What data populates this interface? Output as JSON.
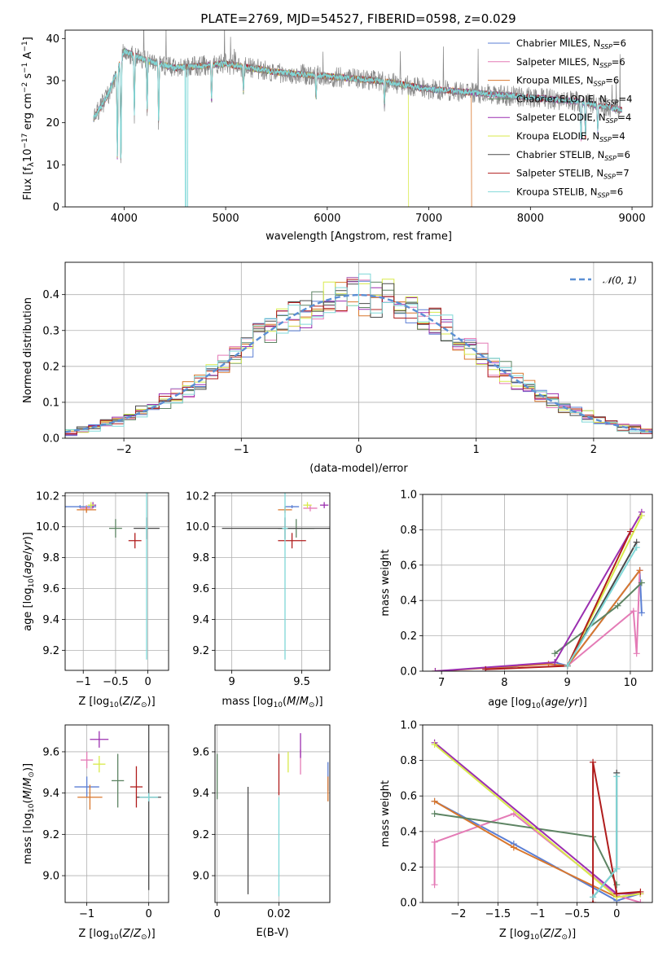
{
  "title": "PLATE=2769, MJD=54527, FIBERID=0598, z=0.029",
  "models": [
    {
      "label": "Chabrier MILES, N",
      "sub": "SSP",
      "suffix": "=6",
      "color": "#5b7fd4"
    },
    {
      "label": "Salpeter MILES, N",
      "sub": "SSP",
      "suffix": "=6",
      "color": "#e47bb6"
    },
    {
      "label": "Kroupa MILES, N",
      "sub": "SSP",
      "suffix": "=6",
      "color": "#d9772d"
    },
    {
      "label": "Chabrier ELODIE, N",
      "sub": "SSP",
      "suffix": "=4",
      "color": "#5d8463"
    },
    {
      "label": "Salpeter ELODIE, N",
      "sub": "SSP",
      "suffix": "=4",
      "color": "#9b2fb0"
    },
    {
      "label": "Kroupa ELODIE, N",
      "sub": "SSP",
      "suffix": "=4",
      "color": "#d8ea4a"
    },
    {
      "label": "Chabrier STELIB, N",
      "sub": "SSP",
      "suffix": "=6",
      "color": "#4a4a4a"
    },
    {
      "label": "Salpeter STELIB, N",
      "sub": "SSP",
      "suffix": "=7",
      "color": "#b01d1d"
    },
    {
      "label": "Kroupa STELIB, N",
      "sub": "SSP",
      "suffix": "=6",
      "color": "#7fd8d8"
    }
  ],
  "chart_data": [
    {
      "id": "spectrum",
      "type": "line",
      "xlabel": "wavelength [Angstrom, rest frame]",
      "ylabel": "Flux [f_λ 10^-17 erg cm^-2 s^-1 A^-1]",
      "xlim": [
        3420,
        9200
      ],
      "ylim": [
        0,
        42
      ],
      "xticks": [
        4000,
        5000,
        6000,
        7000,
        8000,
        9000
      ],
      "yticks": [
        0,
        10,
        20,
        30,
        40
      ],
      "data_range": [
        3700,
        8900
      ],
      "continuum": [
        [
          3700,
          21
        ],
        [
          3850,
          27
        ],
        [
          4000,
          37
        ],
        [
          4200,
          35
        ],
        [
          4500,
          33
        ],
        [
          5000,
          34
        ],
        [
          5500,
          32
        ],
        [
          6000,
          31
        ],
        [
          6500,
          30
        ],
        [
          7000,
          28
        ],
        [
          7500,
          27
        ],
        [
          8000,
          26
        ],
        [
          8500,
          25
        ],
        [
          8900,
          23
        ]
      ],
      "absorption_lines": [
        [
          3934,
          12
        ],
        [
          3969,
          10
        ],
        [
          4101,
          22
        ],
        [
          4227,
          23
        ],
        [
          4340,
          20
        ],
        [
          4861,
          25
        ],
        [
          5175,
          27
        ],
        [
          5890,
          26
        ],
        [
          6563,
          24
        ],
        [
          8498,
          16
        ],
        [
          8542,
          16
        ],
        [
          8662,
          18
        ]
      ],
      "model_cutoffs": [
        {
          "series": "Kroupa MILES",
          "wavelength": 7420
        },
        {
          "series": "Kroupa ELODIE",
          "wavelength": 6800
        },
        {
          "series": "Kroupa STELIB",
          "wavelength": 4610
        },
        {
          "series": "Chabrier STELIB",
          "wavelength": 3900
        }
      ],
      "grid": false,
      "legend": "top-right"
    },
    {
      "id": "residuals",
      "type": "step",
      "xlabel": "(data-model)/error",
      "ylabel": "Normed distribution",
      "xlim": [
        -2.5,
        2.5
      ],
      "ylim": [
        0,
        0.49
      ],
      "xticks": [
        -2,
        -1,
        0,
        1,
        2
      ],
      "yticks": [
        0.0,
        0.1,
        0.2,
        0.3,
        0.4
      ],
      "reference_label": "𝒩(0, 1)",
      "reference_curve": {
        "mean": 0,
        "sigma": 1
      },
      "bin_width": 0.1,
      "grid": true,
      "legend": "top-right"
    },
    {
      "id": "age-vs-Z",
      "type": "errorbar",
      "xlabel": "Z [log10(Z/Z⊙)]",
      "ylabel": "age [log10(age/yr)]",
      "xlim": [
        -1.28,
        0.32
      ],
      "ylim": [
        9.07,
        10.22
      ],
      "xticks": [
        -1,
        -0.5,
        0
      ],
      "yticks": [
        9.2,
        9.4,
        9.6,
        9.8,
        10.0,
        10.2
      ],
      "points": [
        {
          "series": "Chabrier MILES",
          "x": -1.05,
          "y": 10.13,
          "xerr": 0.25,
          "yerr": 0.01
        },
        {
          "series": "Salpeter MILES",
          "x": -0.95,
          "y": 10.12,
          "xerr": 0.1,
          "yerr": 0.02
        },
        {
          "series": "Kroupa MILES",
          "x": -0.95,
          "y": 10.11,
          "xerr": 0.15,
          "yerr": 0.02
        },
        {
          "series": "Chabrier ELODIE",
          "x": -0.5,
          "y": 9.99,
          "xerr": 0.1,
          "yerr": 0.06
        },
        {
          "series": "Salpeter ELODIE",
          "x": -0.85,
          "y": 10.14,
          "xerr": 0.05,
          "yerr": 0.02
        },
        {
          "series": "Kroupa ELODIE",
          "x": -0.88,
          "y": 10.14,
          "xerr": 0.05,
          "yerr": 0.02
        },
        {
          "series": "Chabrier STELIB",
          "x": -0.02,
          "y": 9.99,
          "xerr": 0.2,
          "yerr": 0.07
        },
        {
          "series": "Salpeter STELIB",
          "x": -0.2,
          "y": 9.91,
          "xerr": 0.1,
          "yerr": 0.05
        },
        {
          "series": "Kroupa STELIB",
          "x": -0.02,
          "y": 9.99,
          "xerr": 0.02,
          "yerr": 0.85
        }
      ]
    },
    {
      "id": "age-vs-mass",
      "type": "errorbar",
      "xlabel": "mass [log10(M/M⊙)]",
      "ylabel": "",
      "xlim": [
        8.88,
        9.7
      ],
      "ylim": [
        9.07,
        10.22
      ],
      "xticks": [
        9.0,
        9.5
      ],
      "yticks": [
        9.2,
        9.4,
        9.6,
        9.8,
        10.0,
        10.2
      ],
      "points": [
        {
          "series": "Chabrier MILES",
          "x": 9.43,
          "y": 10.13,
          "xerr": 0.05,
          "yerr": 0.01
        },
        {
          "series": "Salpeter MILES",
          "x": 9.56,
          "y": 10.12,
          "xerr": 0.05,
          "yerr": 0.02
        },
        {
          "series": "Kroupa MILES",
          "x": 9.38,
          "y": 10.11,
          "xerr": 0.05,
          "yerr": 0.02
        },
        {
          "series": "Chabrier ELODIE",
          "x": 9.46,
          "y": 9.99,
          "xerr": 0.13,
          "yerr": 0.06
        },
        {
          "series": "Salpeter ELODIE",
          "x": 9.66,
          "y": 10.14,
          "xerr": 0.03,
          "yerr": 0.02
        },
        {
          "series": "Kroupa ELODIE",
          "x": 9.54,
          "y": 10.14,
          "xerr": 0.03,
          "yerr": 0.02
        },
        {
          "series": "Chabrier STELIB",
          "x": 9.38,
          "y": 9.99,
          "xerr": 0.45,
          "yerr": 0.07
        },
        {
          "series": "Salpeter STELIB",
          "x": 9.43,
          "y": 9.91,
          "xerr": 0.1,
          "yerr": 0.05
        },
        {
          "series": "Kroupa STELIB",
          "x": 9.38,
          "y": 9.99,
          "xerr": 0.02,
          "yerr": 0.85
        }
      ]
    },
    {
      "id": "weight-vs-age",
      "type": "line",
      "xlabel": "age [log10(age/yr)]",
      "ylabel": "mass weight",
      "xlim": [
        6.7,
        10.35
      ],
      "ylim": [
        0,
        1.0
      ],
      "xticks": [
        7,
        8,
        9,
        10
      ],
      "yticks": [
        0.0,
        0.2,
        0.4,
        0.6,
        0.8,
        1.0
      ],
      "series": [
        {
          "name": "Chabrier MILES",
          "x": [
            7.7,
            8.8,
            9.0,
            10.15,
            10.18
          ],
          "y": [
            0.01,
            0.05,
            0.03,
            0.57,
            0.33
          ]
        },
        {
          "name": "Salpeter MILES",
          "x": [
            8.7,
            9.0,
            10.05,
            10.1,
            10.15
          ],
          "y": [
            0.04,
            0.03,
            0.34,
            0.1,
            0.57
          ]
        },
        {
          "name": "Kroupa MILES",
          "x": [
            6.9,
            8.7,
            9.0,
            10.15
          ],
          "y": [
            0.0,
            0.04,
            0.03,
            0.57
          ]
        },
        {
          "name": "Chabrier ELODIE",
          "x": [
            8.8,
            9.8,
            10.18
          ],
          "y": [
            0.1,
            0.37,
            0.5
          ]
        },
        {
          "name": "Salpeter ELODIE",
          "x": [
            6.9,
            8.8,
            10.18
          ],
          "y": [
            0.0,
            0.05,
            0.9
          ]
        },
        {
          "name": "Kroupa ELODIE",
          "x": [
            9.0,
            10.18
          ],
          "y": [
            0.03,
            0.88
          ]
        },
        {
          "name": "Chabrier STELIB",
          "x": [
            9.0,
            10.1
          ],
          "y": [
            0.03,
            0.73
          ]
        },
        {
          "name": "Salpeter STELIB",
          "x": [
            7.7,
            9.0,
            10.0
          ],
          "y": [
            0.01,
            0.03,
            0.79
          ]
        },
        {
          "name": "Kroupa STELIB",
          "x": [
            9.0,
            10.1
          ],
          "y": [
            0.03,
            0.7
          ]
        }
      ]
    },
    {
      "id": "mass-vs-Z",
      "type": "errorbar",
      "xlabel": "Z [log10(Z/Z⊙)]",
      "ylabel": "mass [log10(M/M⊙)]",
      "xlim": [
        -1.35,
        0.32
      ],
      "ylim": [
        8.87,
        9.73
      ],
      "xticks": [
        -1,
        0
      ],
      "yticks": [
        9.0,
        9.2,
        9.4,
        9.6
      ],
      "points": [
        {
          "series": "Chabrier MILES",
          "x": -1.0,
          "y": 9.43,
          "xerr": 0.2,
          "yerr": 0.05
        },
        {
          "series": "Salpeter MILES",
          "x": -1.0,
          "y": 9.56,
          "xerr": 0.1,
          "yerr": 0.04
        },
        {
          "series": "Kroupa MILES",
          "x": -0.95,
          "y": 9.38,
          "xerr": 0.2,
          "yerr": 0.06
        },
        {
          "series": "Chabrier ELODIE",
          "x": -0.5,
          "y": 9.46,
          "xerr": 0.1,
          "yerr": 0.13
        },
        {
          "series": "Salpeter ELODIE",
          "x": -0.8,
          "y": 9.66,
          "xerr": 0.15,
          "yerr": 0.04
        },
        {
          "series": "Kroupa ELODIE",
          "x": -0.8,
          "y": 9.54,
          "xerr": 0.1,
          "yerr": 0.04
        },
        {
          "series": "Chabrier STELIB",
          "x": 0.0,
          "y": 9.38,
          "xerr": 0.2,
          "yerr": 0.45
        },
        {
          "series": "Salpeter STELIB",
          "x": -0.2,
          "y": 9.43,
          "xerr": 0.1,
          "yerr": 0.1
        },
        {
          "series": "Kroupa STELIB",
          "x": 0.0,
          "y": 9.38,
          "xerr": 0.15,
          "yerr": 0.02
        }
      ]
    },
    {
      "id": "mass-vs-EBV",
      "type": "errorbar",
      "xlabel": "E(B-V)",
      "ylabel": "",
      "xlim": [
        -0.0007,
        0.0365
      ],
      "ylim": [
        8.87,
        9.73
      ],
      "xticks": [
        0.0,
        0.02
      ],
      "yticks": [
        9.0,
        9.2,
        9.4,
        9.6
      ],
      "points": [
        {
          "series": "Chabrier MILES",
          "x": 0.0359,
          "y": 9.48,
          "yerr": 0.07
        },
        {
          "series": "Salpeter MILES",
          "x": 0.027,
          "y": 9.55,
          "yerr": 0.06
        },
        {
          "series": "Kroupa MILES",
          "x": 0.0359,
          "y": 9.42,
          "yerr": 0.06
        },
        {
          "series": "Chabrier ELODIE",
          "x": 0.0,
          "y": 9.48,
          "yerr": 0.11
        },
        {
          "series": "Salpeter ELODIE",
          "x": 0.027,
          "y": 9.63,
          "yerr": 0.06
        },
        {
          "series": "Kroupa ELODIE",
          "x": 0.023,
          "y": 9.55,
          "yerr": 0.05
        },
        {
          "series": "Chabrier STELIB",
          "x": 0.01,
          "y": 9.17,
          "yerr": 0.26
        },
        {
          "series": "Salpeter STELIB",
          "x": 0.02,
          "y": 9.49,
          "yerr": 0.1
        },
        {
          "series": "Kroupa STELIB",
          "x": 0.02,
          "y": 9.14,
          "yerr": 0.24
        }
      ]
    },
    {
      "id": "weight-vs-Z",
      "type": "line",
      "xlabel": "Z [log10(Z/Z⊙)]",
      "ylabel": "mass weight",
      "xlim": [
        -2.45,
        0.45
      ],
      "ylim": [
        0,
        1.0
      ],
      "xticks": [
        -2.0,
        -1.5,
        -1.0,
        -0.5,
        0.0
      ],
      "yticks": [
        0.0,
        0.2,
        0.4,
        0.6,
        0.8,
        1.0
      ],
      "series": [
        {
          "name": "Chabrier MILES",
          "x": [
            -2.3,
            -1.3,
            0.0,
            0.3
          ],
          "y": [
            0.57,
            0.33,
            0.01,
            0.05
          ]
        },
        {
          "name": "Salpeter MILES",
          "x": [
            -2.3,
            -2.3,
            -1.3,
            0.0,
            0.3
          ],
          "y": [
            0.1,
            0.34,
            0.5,
            0.04,
            0.0
          ]
        },
        {
          "name": "Kroupa MILES",
          "x": [
            -2.3,
            -1.3,
            0.0,
            0.3
          ],
          "y": [
            0.57,
            0.31,
            0.03,
            0.05
          ]
        },
        {
          "name": "Chabrier ELODIE",
          "x": [
            -2.3,
            -0.3,
            0.0
          ],
          "y": [
            0.5,
            0.37,
            0.1
          ]
        },
        {
          "name": "Salpeter ELODIE",
          "x": [
            -2.3,
            0.0,
            0.3
          ],
          "y": [
            0.9,
            0.05,
            0.05
          ]
        },
        {
          "name": "Kroupa ELODIE",
          "x": [
            -2.3,
            0.0,
            0.3
          ],
          "y": [
            0.89,
            0.03,
            0.05
          ]
        },
        {
          "name": "Chabrier STELIB",
          "x": [
            -0.3,
            0.0,
            0.0
          ],
          "y": [
            0.03,
            0.19,
            0.73
          ]
        },
        {
          "name": "Salpeter STELIB",
          "x": [
            -0.3,
            -0.3,
            0.0,
            0.3
          ],
          "y": [
            0.0,
            0.79,
            0.05,
            0.06
          ]
        },
        {
          "name": "Kroupa STELIB",
          "x": [
            -0.3,
            0.0,
            0.0
          ],
          "y": [
            0.03,
            0.19,
            0.71
          ]
        }
      ]
    }
  ]
}
